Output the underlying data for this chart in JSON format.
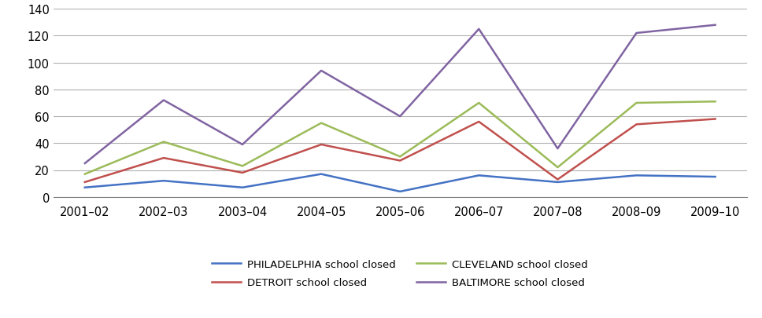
{
  "x_labels": [
    "2001–02",
    "2002–03",
    "2003–04",
    "2004–05",
    "2005–06",
    "2006–07",
    "2007–08",
    "2008–09",
    "2009–10"
  ],
  "philadelphia": [
    7,
    12,
    7,
    17,
    4,
    16,
    11,
    16,
    15
  ],
  "detroit": [
    11,
    29,
    18,
    39,
    27,
    56,
    13,
    54,
    58
  ],
  "cleveland": [
    17,
    41,
    23,
    55,
    30,
    70,
    22,
    70,
    71
  ],
  "baltimore": [
    25,
    72,
    39,
    94,
    60,
    125,
    36,
    122,
    128
  ],
  "philadelphia_color": "#4472C4",
  "detroit_color": "#C0504D",
  "cleveland_color": "#9BBB59",
  "baltimore_color": "#8064A2",
  "philadelphia_label": "PHILADELPHIA school closed",
  "detroit_label": "DETROIT school closed",
  "cleveland_label": "CLEVELAND school closed",
  "baltimore_label": "BALTIMORE school closed",
  "ylim": [
    0,
    140
  ],
  "yticks": [
    0,
    20,
    40,
    60,
    80,
    100,
    120,
    140
  ],
  "background_color": "#ffffff",
  "grid_color": "#b0b0b0",
  "linewidth": 1.8,
  "legend_fontsize": 9.5,
  "tick_fontsize": 10.5
}
